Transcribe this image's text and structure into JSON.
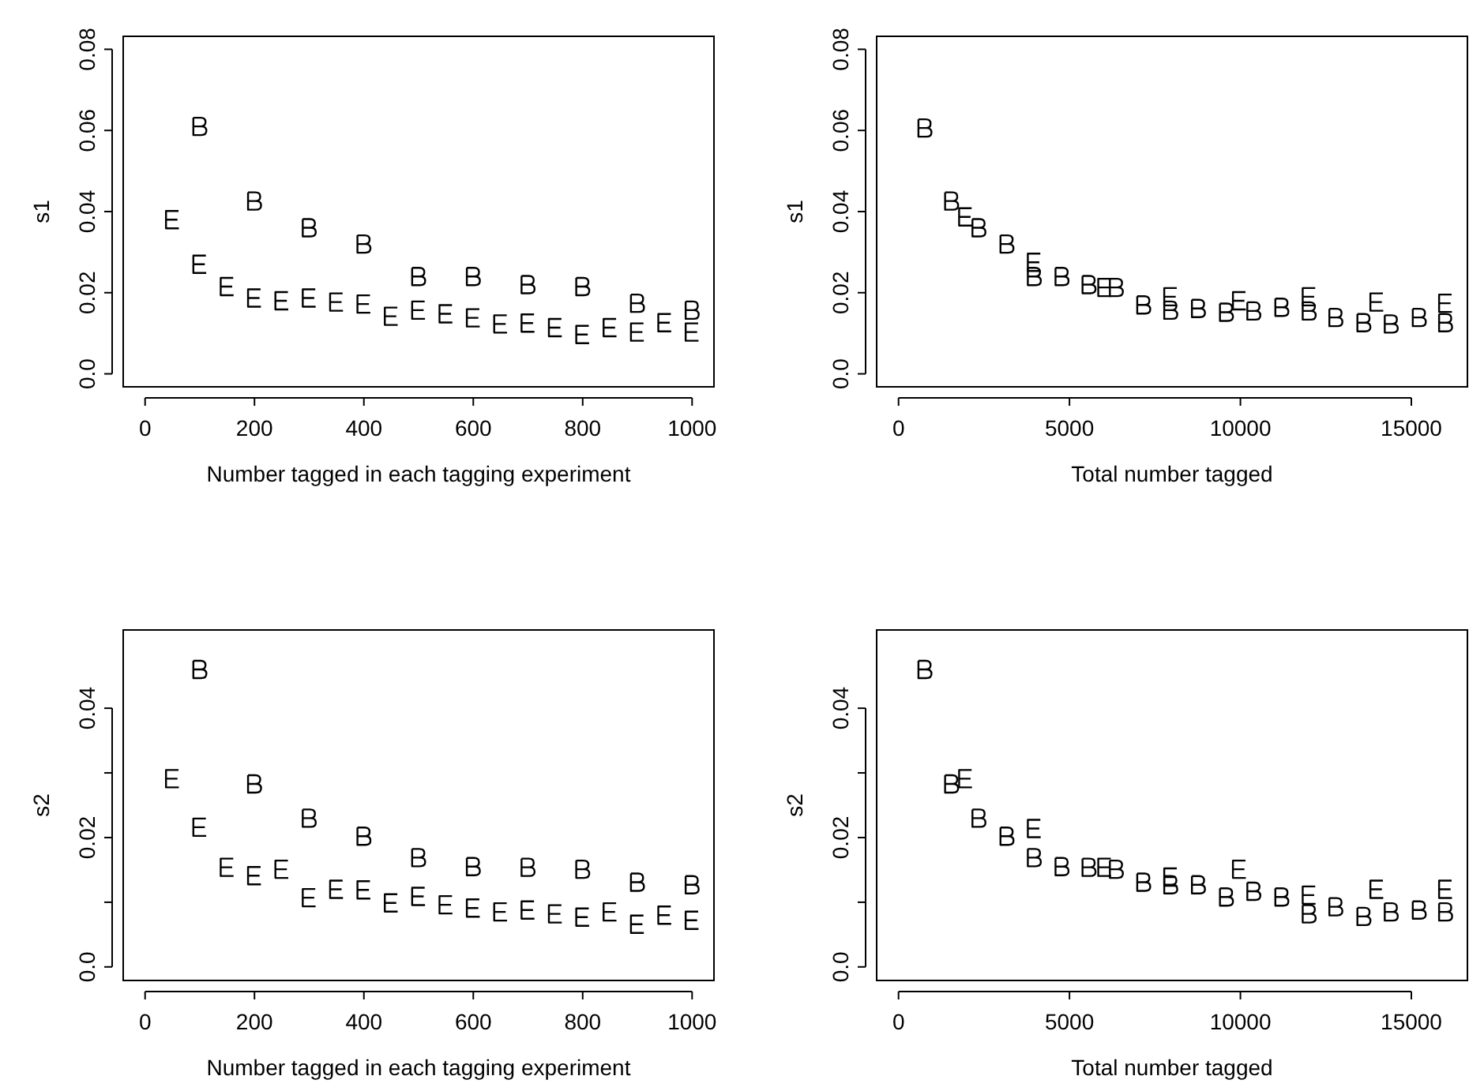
{
  "chart_data": [
    {
      "type": "scatter",
      "xlabel": "Number tagged in each tagging experiment",
      "ylabel": "s1",
      "xlim": [
        -40,
        1040
      ],
      "ylim": [
        -0.0032,
        0.0832
      ],
      "xticks": [
        0,
        200,
        400,
        600,
        800,
        1000
      ],
      "yticks": [
        {
          "value": 0,
          "label": "0.0"
        },
        0.02,
        0.04,
        0.06,
        {
          "value": 0.08,
          "label": "0.08"
        }
      ],
      "series": [
        {
          "color": "#000000",
          "x": [
            100,
            200,
            300,
            400,
            500,
            600,
            700,
            800,
            900,
            1000
          ],
          "values": [
            0.061,
            0.0426,
            0.036,
            0.032,
            0.024,
            0.024,
            0.022,
            0.0215,
            0.0174,
            0.0157
          ]
        },
        {
          "color": "#000000",
          "x": [
            50,
            100,
            150,
            200,
            250,
            300,
            350,
            400,
            450,
            500,
            550,
            600,
            650,
            700,
            750,
            800,
            850,
            900,
            950,
            1000
          ],
          "values": [
            0.038,
            0.027,
            0.0215,
            0.0187,
            0.018,
            0.0187,
            0.0177,
            0.0172,
            0.0142,
            0.0157,
            0.0148,
            0.0138,
            0.0123,
            0.0125,
            0.0114,
            0.0097,
            0.0114,
            0.0103,
            0.0126,
            0.0103
          ]
        }
      ]
    },
    {
      "type": "scatter",
      "xlabel": "Total number tagged",
      "ylabel": "s1",
      "xlim": [
        -640,
        16640
      ],
      "ylim": [
        -0.0032,
        0.0832
      ],
      "xticks": [
        0,
        5000,
        10000,
        15000
      ],
      "yticks": [
        {
          "value": 0,
          "label": "0.0"
        },
        0.02,
        0.04,
        0.06,
        {
          "value": 0.08,
          "label": "0.08"
        }
      ],
      "series": [
        {
          "color": "#000000",
          "x": [
            770,
            1550,
            2350,
            3170,
            3970,
            4780,
            5570,
            6370,
            7170,
            7960,
            8770,
            9590,
            10390,
            11210,
            12010,
            12790,
            13610,
            14410,
            15230,
            16000
          ],
          "values": [
            0.0606,
            0.0426,
            0.036,
            0.032,
            0.024,
            0.024,
            0.022,
            0.0213,
            0.017,
            0.0157,
            0.0161,
            0.0152,
            0.0155,
            0.0164,
            0.0155,
            0.0139,
            0.0126,
            0.0123,
            0.0139,
            0.0126
          ]
        },
        {
          "color": "#000000",
          "x": [
            1960,
            3970,
            6030,
            7960,
            9970,
            12010,
            13990,
            16000
          ],
          "values": [
            0.0387,
            0.0275,
            0.0213,
            0.019,
            0.018,
            0.019,
            0.0177,
            0.0174
          ]
        }
      ]
    },
    {
      "type": "scatter",
      "xlabel": "Number tagged in each tagging experiment",
      "ylabel": "s2",
      "xlim": [
        -40,
        1040
      ],
      "ylim": [
        -0.0021,
        0.0521
      ],
      "xticks": [
        0,
        200,
        400,
        600,
        800,
        1000
      ],
      "yticks": [
        {
          "value": 0,
          "label": "0.0"
        },
        {
          "value": 0.01,
          "label": null
        },
        0.02,
        {
          "value": 0.03,
          "label": null
        },
        0.04
      ],
      "series": [
        {
          "color": "#000000",
          "x": [
            100,
            200,
            300,
            400,
            500,
            600,
            700,
            800,
            900,
            1000
          ],
          "values": [
            0.046,
            0.0283,
            0.023,
            0.0202,
            0.0169,
            0.0155,
            0.0154,
            0.0151,
            0.0131,
            0.0127
          ]
        },
        {
          "color": "#000000",
          "x": [
            50,
            100,
            150,
            200,
            250,
            300,
            350,
            400,
            450,
            500,
            550,
            600,
            650,
            700,
            750,
            800,
            850,
            900,
            950,
            1000
          ],
          "values": [
            0.0291,
            0.0216,
            0.0154,
            0.0141,
            0.0151,
            0.0107,
            0.012,
            0.0119,
            0.0099,
            0.0109,
            0.0096,
            0.0091,
            0.0085,
            0.0088,
            0.0082,
            0.0077,
            0.0085,
            0.0066,
            0.008,
            0.0072
          ]
        }
      ]
    },
    {
      "type": "scatter",
      "xlabel": "Total number tagged",
      "ylabel": "s2",
      "xlim": [
        -640,
        16640
      ],
      "ylim": [
        -0.0021,
        0.0521
      ],
      "xticks": [
        0,
        5000,
        10000,
        15000
      ],
      "yticks": [
        {
          "value": 0,
          "label": "0.0"
        },
        {
          "value": 0.01,
          "label": null
        },
        0.02,
        {
          "value": 0.03,
          "label": null
        },
        0.04
      ],
      "series": [
        {
          "color": "#000000",
          "x": [
            770,
            1550,
            2350,
            3170,
            3970,
            4780,
            5570,
            6370,
            7170,
            7960,
            8770,
            9590,
            10390,
            11210,
            12010,
            12790,
            13610,
            14410,
            15230,
            16000
          ],
          "values": [
            0.046,
            0.0283,
            0.023,
            0.0202,
            0.0169,
            0.0155,
            0.0154,
            0.0151,
            0.0131,
            0.0127,
            0.0127,
            0.0108,
            0.0117,
            0.0108,
            0.0082,
            0.0093,
            0.0078,
            0.0085,
            0.0088,
            0.0085
          ]
        },
        {
          "color": "#000000",
          "x": [
            1960,
            3970,
            6030,
            7960,
            9970,
            12010,
            13990,
            16000
          ],
          "values": [
            0.0291,
            0.0214,
            0.0154,
            0.0139,
            0.0151,
            0.0111,
            0.012,
            0.012
          ]
        }
      ]
    }
  ]
}
